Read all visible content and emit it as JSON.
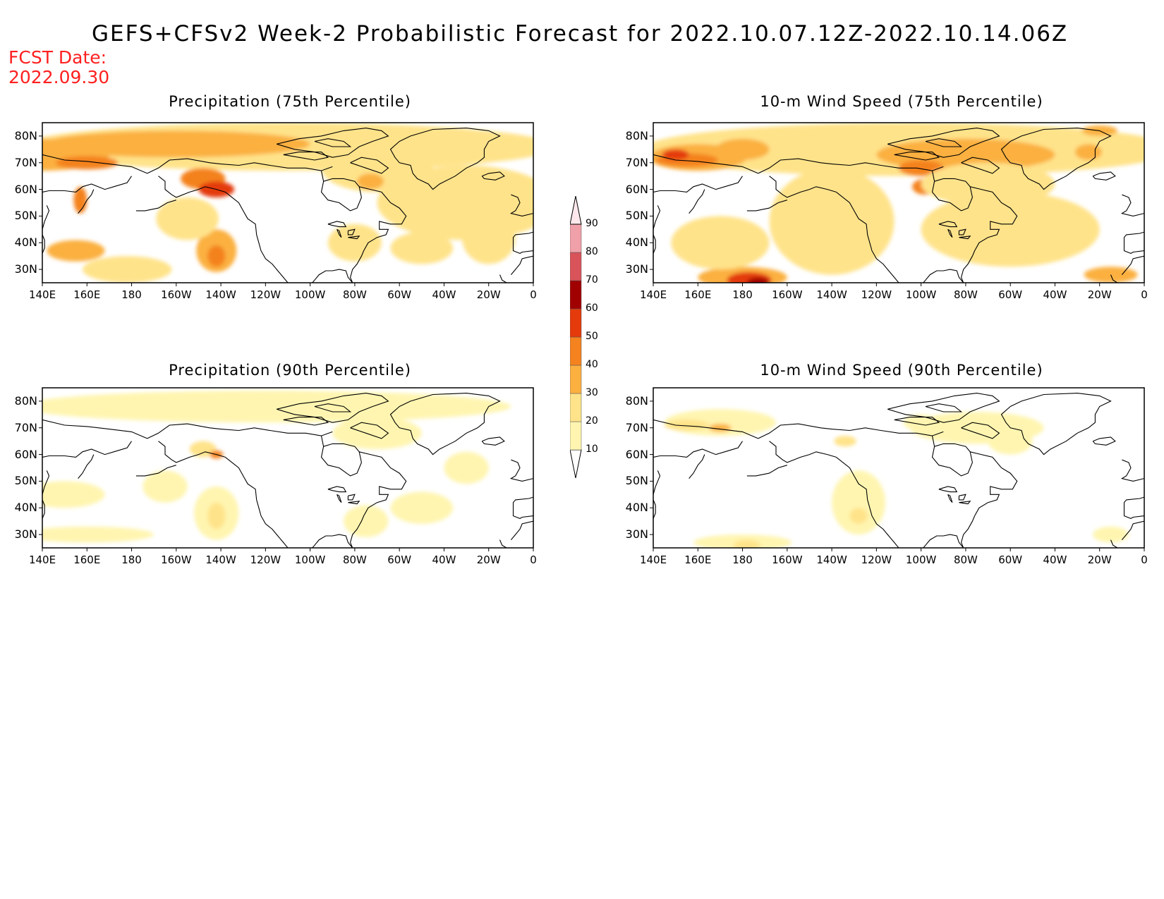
{
  "header": {
    "title": "GEFS+CFSv2 Week-2 Probabilistic Forecast for 2022.10.07.12Z-2022.10.14.06Z",
    "fcst_label": "FCST Date:",
    "fcst_date": "2022.09.30"
  },
  "panels": [
    {
      "title": "Precipitation (75th Percentile)",
      "variable": "precipitation",
      "percentile": 75
    },
    {
      "title": "10-m Wind Speed (75th Percentile)",
      "variable": "wind",
      "percentile": 75
    },
    {
      "title": "Precipitation (90th Percentile)",
      "variable": "precipitation",
      "percentile": 90
    },
    {
      "title": "10-m Wind Speed (90th Percentile)",
      "variable": "wind",
      "percentile": 90
    }
  ],
  "lat_labels": [
    "80N",
    "70N",
    "60N",
    "50N",
    "40N",
    "30N"
  ],
  "lon_labels": [
    "140E",
    "160E",
    "180",
    "160W",
    "140W",
    "120W",
    "100W",
    "80W",
    "60W",
    "40W",
    "20W",
    "0"
  ],
  "colorbar": {
    "levels": [
      "10",
      "20",
      "30",
      "40",
      "50",
      "60",
      "70",
      "80",
      "90"
    ],
    "colors": [
      "#ffffff",
      "#fff5b0",
      "#ffe38a",
      "#fbb040",
      "#f4821e",
      "#e43a0c",
      "#a00000",
      "#d8545a",
      "#f0a0a8",
      "#ffe8ec"
    ]
  },
  "colors": {
    "title": "#000000",
    "fcst": "#ff2020",
    "coastline": "#000000"
  }
}
